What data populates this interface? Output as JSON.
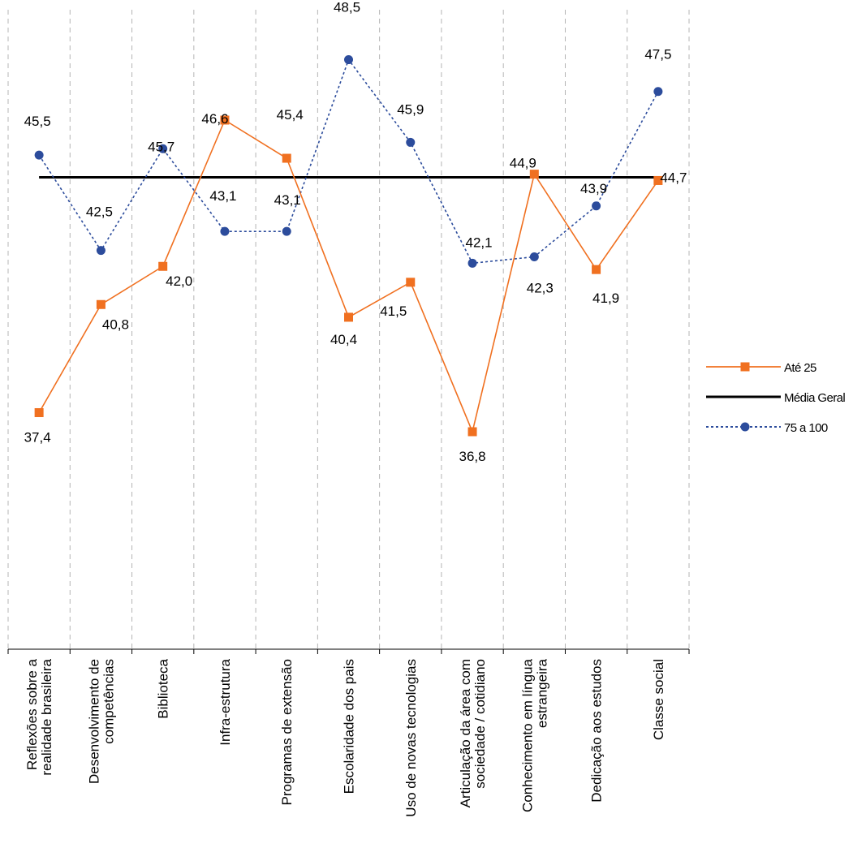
{
  "chart_data": {
    "type": "line",
    "categories": [
      [
        "Reflexões sobre a",
        "realidade brasileira"
      ],
      [
        "Desenvolvimento de",
        "competências"
      ],
      [
        "Biblioteca"
      ],
      [
        "Infra-estrutura"
      ],
      [
        "Programas de extensão"
      ],
      [
        "Escolaridade dos pais"
      ],
      [
        "Uso de novas tecnologias"
      ],
      [
        "Articulação da área com",
        "sociedade / cotidiano"
      ],
      [
        "Conhecimento em língua",
        "estrangeira"
      ],
      [
        "Dedicação aos estudos"
      ],
      [
        "Classe social"
      ]
    ],
    "series": [
      {
        "name": "Até 25",
        "color": "#F07020",
        "marker": "square",
        "line_style": "solid",
        "values": [
          37.4,
          40.8,
          42.0,
          46.6,
          45.4,
          40.4,
          41.5,
          36.8,
          44.9,
          41.9,
          44.7
        ],
        "labels": [
          "37,4",
          "40,8",
          "42,0",
          "46,6",
          "45,4",
          "40,4",
          "41,5",
          "36,8",
          "44,9",
          "41,9",
          "44,7"
        ]
      },
      {
        "name": "Média Geral",
        "color": "#000000",
        "marker": "none",
        "line_style": "solid",
        "values": [
          44.8,
          44.8,
          44.8,
          44.8,
          44.8,
          44.8,
          44.8,
          44.8,
          44.8,
          44.8,
          44.8
        ],
        "labels": []
      },
      {
        "name": "75 a 100",
        "color": "#2C4C9C",
        "marker": "circle",
        "line_style": "dotted",
        "values": [
          45.5,
          42.5,
          45.7,
          43.1,
          43.1,
          48.5,
          45.9,
          42.1,
          42.3,
          43.9,
          47.5
        ],
        "labels": [
          "45,5",
          "42,5",
          "45,7",
          "43,1",
          "43,1",
          "48,5",
          "45,9",
          "42,1",
          "42,3",
          "43,9",
          "47,5"
        ]
      }
    ],
    "ylim": [
      30,
      50
    ],
    "y_axis_visible": false,
    "grid": "vertical dashed",
    "legend_position": "right"
  }
}
